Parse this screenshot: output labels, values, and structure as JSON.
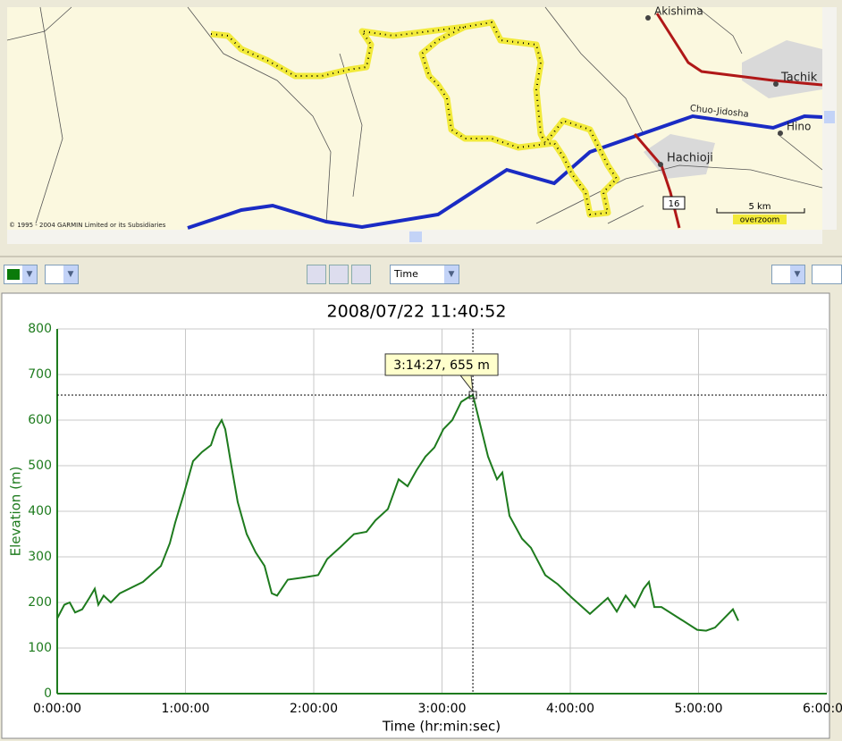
{
  "map": {
    "labels": [
      "Akishima",
      "Tachik",
      "Chuo-Jidosha",
      "Hino",
      "Hachioji"
    ],
    "route_shield": "16",
    "scale": "5 km",
    "zoom_note": "overzoom",
    "copyright": "© 1995 - 2004 GARMIN Limited or its Subsidiaries"
  },
  "toolbar": {
    "axis_select": "Time"
  },
  "chart_data": {
    "type": "line",
    "title": "2008/07/22 11:40:52",
    "xlabel": "Time (hr:min:sec)",
    "ylabel": "Elevation (m)",
    "xlim": [
      0,
      21600
    ],
    "ylim": [
      0,
      800
    ],
    "xticks": [
      {
        "value": 0,
        "label": "0:00:00"
      },
      {
        "value": 3600,
        "label": "1:00:00"
      },
      {
        "value": 7200,
        "label": "2:00:00"
      },
      {
        "value": 10800,
        "label": "3:00:00"
      },
      {
        "value": 14400,
        "label": "4:00:00"
      },
      {
        "value": 18000,
        "label": "5:00:00"
      },
      {
        "value": 21600,
        "label": "6:00:00"
      }
    ],
    "yticks": [
      0,
      100,
      200,
      300,
      400,
      500,
      600,
      700,
      800
    ],
    "grid": true,
    "series": [
      {
        "name": "Elevation",
        "color": "#1e7b1e",
        "x": [
          0,
          201,
          351,
          502,
          702,
          903,
          1054,
          1154,
          1304,
          1505,
          1756,
          2408,
          2910,
          3161,
          3311,
          3562,
          3813,
          4064,
          4315,
          4465,
          4616,
          4716,
          4866,
          5067,
          5318,
          5569,
          5820,
          6021,
          6171,
          6472,
          6924,
          7325,
          7576,
          7928,
          8329,
          8680,
          8931,
          9282,
          9583,
          9834,
          10085,
          10336,
          10587,
          10838,
          11088,
          11339,
          11540,
          11667,
          11841,
          12092,
          12343,
          12493,
          12694,
          13045,
          13296,
          13698,
          14049,
          14450,
          14952,
          15454,
          15705,
          15955,
          16206,
          16457,
          16608,
          16758,
          16959,
          17461,
          17962,
          18213,
          18464,
          18715,
          18965,
          19116
        ],
        "values": [
          165,
          195,
          200,
          178,
          185,
          210,
          230,
          195,
          215,
          200,
          220,
          245,
          280,
          330,
          375,
          440,
          510,
          530,
          545,
          580,
          600,
          580,
          510,
          420,
          350,
          310,
          280,
          220,
          215,
          250,
          255,
          260,
          295,
          320,
          350,
          355,
          380,
          405,
          470,
          455,
          490,
          520,
          540,
          580,
          600,
          640,
          650,
          655,
          600,
          520,
          470,
          485,
          390,
          340,
          320,
          260,
          240,
          210,
          175,
          210,
          180,
          215,
          190,
          230,
          245,
          190,
          190,
          165,
          140,
          138,
          145,
          165,
          185,
          160
        ]
      }
    ],
    "cursor": {
      "x": 11667,
      "y": 655,
      "label": "3:14:27, 655 m"
    }
  }
}
